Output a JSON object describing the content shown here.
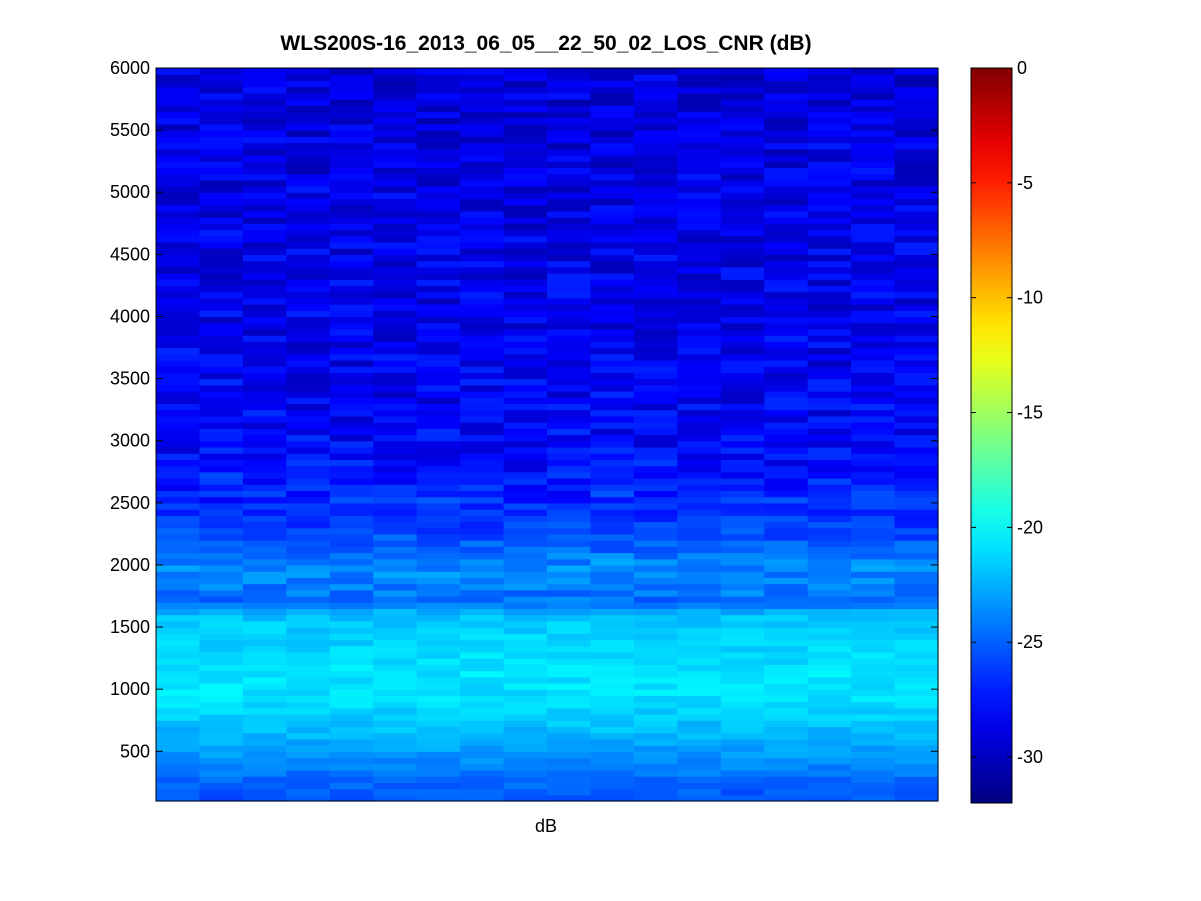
{
  "chart_data": {
    "type": "heatmap",
    "title": "WLS200S-16_2013_06_05__22_50_02_LOS_CNR (dB)",
    "xlabel": "dB",
    "ylabel": "",
    "ylim": [
      100,
      6000
    ],
    "y_ticks": [
      500,
      1000,
      1500,
      2000,
      2500,
      3000,
      3500,
      4000,
      4500,
      5000,
      5500,
      6000
    ],
    "n_columns": 18,
    "colorbar": {
      "colormap": "jet",
      "clim": [
        -32,
        0
      ],
      "ticks": [
        0,
        -5,
        -10,
        -15,
        -20,
        -25,
        -30
      ],
      "placement": "right"
    },
    "value_profile_by_range": [
      {
        "range": 100,
        "value": -25.5
      },
      {
        "range": 300,
        "value": -24.5
      },
      {
        "range": 500,
        "value": -23.0
      },
      {
        "range": 700,
        "value": -22.0
      },
      {
        "range": 900,
        "value": -21.0
      },
      {
        "range": 1100,
        "value": -20.8
      },
      {
        "range": 1300,
        "value": -21.2
      },
      {
        "range": 1500,
        "value": -21.5
      },
      {
        "range": 1600,
        "value": -22.0
      },
      {
        "range": 1700,
        "value": -24.5
      },
      {
        "range": 1850,
        "value": -24.0
      },
      {
        "range": 2000,
        "value": -23.5
      },
      {
        "range": 2100,
        "value": -24.5
      },
      {
        "range": 2300,
        "value": -26.0
      },
      {
        "range": 2600,
        "value": -27.0
      },
      {
        "range": 3000,
        "value": -28.0
      },
      {
        "range": 4000,
        "value": -28.5
      },
      {
        "range": 5000,
        "value": -28.7
      },
      {
        "range": 6000,
        "value": -29.0
      }
    ]
  }
}
